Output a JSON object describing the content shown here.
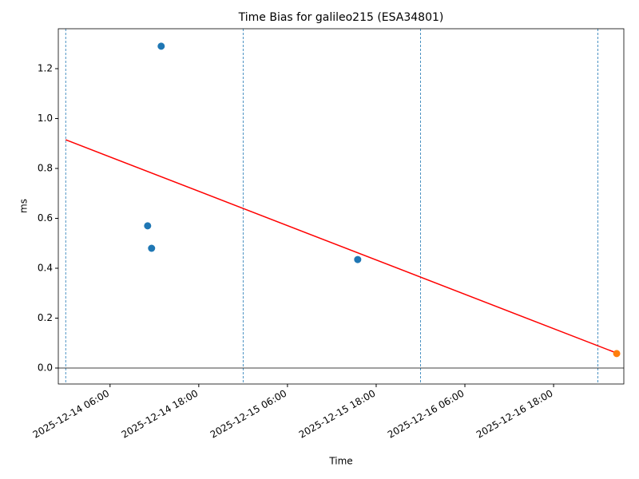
{
  "chart_data": {
    "type": "scatter",
    "title": "Time Bias for galileo215 (ESA34801)",
    "x_label": "Time",
    "y_label": "ms",
    "xlim": [
      "2025-12-13 23:00",
      "2025-12-17 03:30"
    ],
    "xticks": [
      "2025-12-14 06:00",
      "2025-12-14 18:00",
      "2025-12-15 06:00",
      "2025-12-15 18:00",
      "2025-12-16 06:00",
      "2025-12-16 18:00"
    ],
    "ylim": [
      -0.064,
      1.36
    ],
    "yticks": [
      {
        "value": 0,
        "label": "0.0"
      },
      0.2,
      0.4,
      0.6,
      0.8,
      {
        "value": 1,
        "label": "1.0"
      },
      1.2
    ],
    "vlines": [
      "2025-12-14 00:00",
      "2025-12-15 00:00",
      "2025-12-16 00:00",
      "2025-12-17 00:00"
    ],
    "vline_color": "#1f77b4",
    "hline": 0,
    "series": [
      {
        "color": "#1f77b4",
        "x": [
          "2025-12-14 11:05",
          "2025-12-14 11:37",
          "2025-12-14 12:55",
          "2025-12-15 15:30"
        ],
        "values": [
          0.57,
          0.48,
          1.29,
          0.435
        ]
      },
      {
        "color": "#ff7f0e",
        "x": [
          "2025-12-17 02:32"
        ],
        "values": [
          0.058
        ]
      }
    ],
    "fit": {
      "color": "#ff0000",
      "x": [
        "2025-12-14 00:00",
        "2025-12-17 02:32"
      ],
      "values": [
        0.915,
        0.06
      ]
    }
  }
}
